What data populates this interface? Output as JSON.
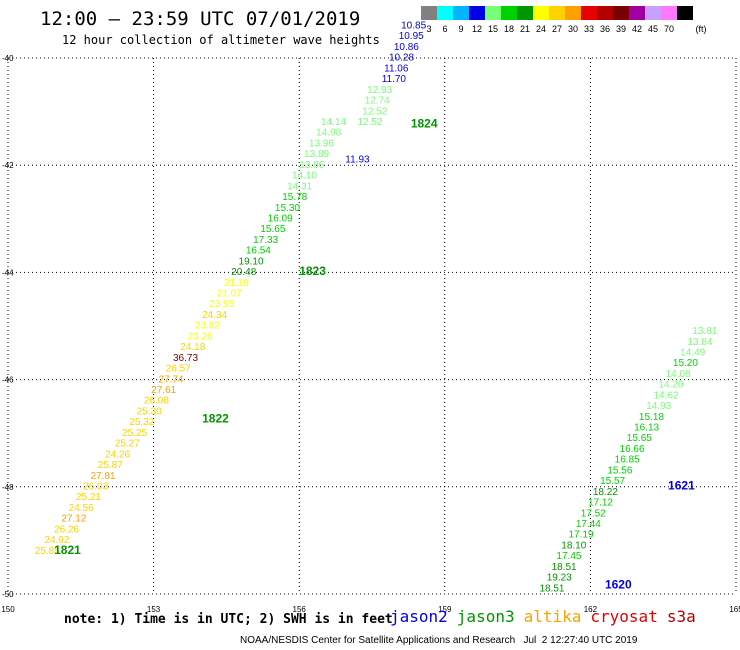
{
  "header": {
    "title": "12:00 — 23:59 UTC 07/01/2019",
    "subtitle": "12 hour collection of altimeter wave heights"
  },
  "colorbar": {
    "unit": "(ft)",
    "bins": [
      {
        "label": "3",
        "color": "#808080"
      },
      {
        "label": "6",
        "color": "#00ffff"
      },
      {
        "label": "9",
        "color": "#00b4ff"
      },
      {
        "label": "12",
        "color": "#0000e6"
      },
      {
        "label": "15",
        "color": "#78ff78"
      },
      {
        "label": "18",
        "color": "#00d200"
      },
      {
        "label": "21",
        "color": "#009600"
      },
      {
        "label": "24",
        "color": "#ffff00"
      },
      {
        "label": "27",
        "color": "#ffd200"
      },
      {
        "label": "30",
        "color": "#ffa000"
      },
      {
        "label": "33",
        "color": "#e60000"
      },
      {
        "label": "36",
        "color": "#b40000"
      },
      {
        "label": "39",
        "color": "#780000"
      },
      {
        "label": "42",
        "color": "#a000a0"
      },
      {
        "label": "45",
        "color": "#c8a0ff"
      },
      {
        "label": "70",
        "color": "#ff78ff"
      },
      {
        "label": "",
        "color": "#000000"
      }
    ]
  },
  "chart_data": {
    "type": "scatter",
    "title": "12:00 — 23:59 UTC 07/01/2019",
    "subtitle": "12 hour collection of altimeter wave heights",
    "xlim": [
      150,
      165
    ],
    "ylim": [
      -50,
      -40
    ],
    "xticks": [
      {
        "value": 150,
        "label": "150"
      },
      {
        "value": 153,
        "label": "153"
      },
      {
        "value": 156,
        "label": "156"
      },
      {
        "value": 159,
        "label": "159"
      },
      {
        "value": 162,
        "label": "162"
      },
      {
        "value": 165,
        "label": "165"
      }
    ],
    "yticks": [
      {
        "value": -40,
        "label": "-40"
      },
      {
        "value": -42,
        "label": "-42"
      },
      {
        "value": -44,
        "label": "-44"
      },
      {
        "value": -46,
        "label": "-46"
      },
      {
        "value": -48,
        "label": "-48"
      },
      {
        "value": -50,
        "label": "-50"
      }
    ],
    "grid": "dotted",
    "series": [
      {
        "name": "jason3",
        "color": "#009600",
        "times": [
          {
            "label": "1821",
            "x": 150.95,
            "y": -49.25
          },
          {
            "label": "1822",
            "x": 154.0,
            "y": -46.8
          },
          {
            "label": "1823",
            "x": 156.0,
            "y": -44.05
          },
          {
            "label": "1824",
            "x": 158.3,
            "y": -41.3
          }
        ],
        "points": [
          {
            "x": 150.55,
            "y": -49.25,
            "v": 25.85
          },
          {
            "x": 150.75,
            "y": -49.05,
            "v": 24.92
          },
          {
            "x": 150.95,
            "y": -48.85,
            "v": 26.26
          },
          {
            "x": 151.1,
            "y": -48.65,
            "v": 27.12
          },
          {
            "x": 151.25,
            "y": -48.45,
            "v": 24.56
          },
          {
            "x": 151.4,
            "y": -48.25,
            "v": 25.21
          },
          {
            "x": 151.55,
            "y": -48.05,
            "v": 26.03
          },
          {
            "x": 151.7,
            "y": -47.85,
            "v": 27.81
          },
          {
            "x": 151.85,
            "y": -47.65,
            "v": 25.87
          },
          {
            "x": 152.0,
            "y": -47.45,
            "v": 24.26
          },
          {
            "x": 152.2,
            "y": -47.25,
            "v": 25.27
          },
          {
            "x": 152.35,
            "y": -47.05,
            "v": 25.25
          },
          {
            "x": 152.5,
            "y": -46.85,
            "v": 25.32
          },
          {
            "x": 152.65,
            "y": -46.65,
            "v": 25.3
          },
          {
            "x": 152.8,
            "y": -46.45,
            "v": 26.08
          },
          {
            "x": 152.95,
            "y": -46.25,
            "v": 27.61
          },
          {
            "x": 153.1,
            "y": -46.05,
            "v": 27.74
          },
          {
            "x": 153.25,
            "y": -45.85,
            "v": 26.57
          },
          {
            "x": 153.4,
            "y": -45.65,
            "v": 36.73
          },
          {
            "x": 153.55,
            "y": -45.45,
            "v": 24.18
          },
          {
            "x": 153.7,
            "y": -45.25,
            "v": 23.26
          },
          {
            "x": 153.85,
            "y": -45.05,
            "v": 23.82
          },
          {
            "x": 154.0,
            "y": -44.85,
            "v": 24.34
          },
          {
            "x": 154.15,
            "y": -44.65,
            "v": 23.95
          },
          {
            "x": 154.3,
            "y": -44.45,
            "v": 21.07
          },
          {
            "x": 154.45,
            "y": -44.25,
            "v": 21.19
          },
          {
            "x": 154.6,
            "y": -44.05,
            "v": 20.48
          },
          {
            "x": 154.75,
            "y": -43.85,
            "v": 19.1
          },
          {
            "x": 154.9,
            "y": -43.65,
            "v": 16.54
          },
          {
            "x": 155.05,
            "y": -43.45,
            "v": 17.33
          },
          {
            "x": 155.2,
            "y": -43.25,
            "v": 15.65
          },
          {
            "x": 155.35,
            "y": -43.05,
            "v": 16.09
          },
          {
            "x": 155.5,
            "y": -42.85,
            "v": 15.3
          },
          {
            "x": 155.65,
            "y": -42.65,
            "v": 15.78
          },
          {
            "x": 155.75,
            "y": -42.45,
            "v": 14.31
          },
          {
            "x": 155.85,
            "y": -42.25,
            "v": 14.1
          },
          {
            "x": 156.0,
            "y": -42.05,
            "v": 13.86
          },
          {
            "x": 156.1,
            "y": -41.85,
            "v": 13.89
          },
          {
            "x": 156.2,
            "y": -41.65,
            "v": 13.96
          },
          {
            "x": 156.35,
            "y": -41.45,
            "v": 14.98
          },
          {
            "x": 156.45,
            "y": -41.25,
            "v": 14.14
          }
        ]
      },
      {
        "name": "jason2",
        "color": "#0000e6",
        "times": [
          {
            "label": "1620",
            "x": 162.3,
            "y": -49.9
          },
          {
            "label": "1621",
            "x": 163.6,
            "y": -48.05
          }
        ],
        "points": [
          {
            "x": 156.95,
            "y": -41.95,
            "v": 11.93
          },
          {
            "x": 157.2,
            "y": -41.25,
            "v": 12.52
          },
          {
            "x": 157.3,
            "y": -41.05,
            "v": 12.52
          },
          {
            "x": 157.35,
            "y": -40.85,
            "v": 12.74
          },
          {
            "x": 157.4,
            "y": -40.65,
            "v": 12.93
          },
          {
            "x": 157.7,
            "y": -40.45,
            "v": 11.7
          },
          {
            "x": 157.75,
            "y": -40.25,
            "v": 11.06
          },
          {
            "x": 157.85,
            "y": -40.05,
            "v": 10.28
          },
          {
            "x": 157.95,
            "y": -39.85,
            "v": 10.86
          },
          {
            "x": 158.05,
            "y": -39.65,
            "v": 10.95
          },
          {
            "x": 158.1,
            "y": -39.45,
            "v": 10.85
          },
          {
            "x": 160.95,
            "y": -49.95,
            "v": 18.51
          },
          {
            "x": 161.1,
            "y": -49.75,
            "v": 19.23
          },
          {
            "x": 161.2,
            "y": -49.55,
            "v": 18.51
          },
          {
            "x": 161.3,
            "y": -49.35,
            "v": 17.45
          },
          {
            "x": 161.4,
            "y": -49.15,
            "v": 18.1
          },
          {
            "x": 161.55,
            "y": -48.95,
            "v": 17.19
          },
          {
            "x": 161.7,
            "y": -48.75,
            "v": 17.44
          },
          {
            "x": 161.8,
            "y": -48.55,
            "v": 17.52
          },
          {
            "x": 161.95,
            "y": -48.35,
            "v": 17.12
          },
          {
            "x": 162.05,
            "y": -48.15,
            "v": 18.22
          },
          {
            "x": 162.2,
            "y": -47.95,
            "v": 15.57
          },
          {
            "x": 162.35,
            "y": -47.75,
            "v": 15.56
          },
          {
            "x": 162.5,
            "y": -47.55,
            "v": 16.85
          },
          {
            "x": 162.6,
            "y": -47.35,
            "v": 16.66
          },
          {
            "x": 162.75,
            "y": -47.15,
            "v": 15.65
          },
          {
            "x": 162.9,
            "y": -46.95,
            "v": 16.13
          },
          {
            "x": 163.0,
            "y": -46.75,
            "v": 15.18
          },
          {
            "x": 163.15,
            "y": -46.55,
            "v": 14.93
          },
          {
            "x": 163.3,
            "y": -46.35,
            "v": 14.62
          },
          {
            "x": 163.4,
            "y": -46.15,
            "v": 14.2
          },
          {
            "x": 163.55,
            "y": -45.95,
            "v": 14.08
          },
          {
            "x": 163.7,
            "y": -45.75,
            "v": 15.2
          },
          {
            "x": 163.85,
            "y": -45.55,
            "v": 14.49
          },
          {
            "x": 164.0,
            "y": -45.35,
            "v": 13.84
          },
          {
            "x": 164.1,
            "y": -45.15,
            "v": 13.81
          }
        ]
      }
    ]
  },
  "footer": {
    "note": "note: 1) Time is in UTC; 2) SWH is in feet",
    "satellites": [
      {
        "name": "jason2",
        "color": "#0000e6"
      },
      {
        "name": "jason3",
        "color": "#009600"
      },
      {
        "name": "altika",
        "color": "#ffa000"
      },
      {
        "name": "cryosat",
        "color": "#e60000"
      },
      {
        "name": "s3a",
        "color": "#b40000"
      }
    ],
    "credit": "NOAA/NESDIS Center for Satellite Applications and Research   Jul  2 12:27:40 UTC 2019"
  }
}
